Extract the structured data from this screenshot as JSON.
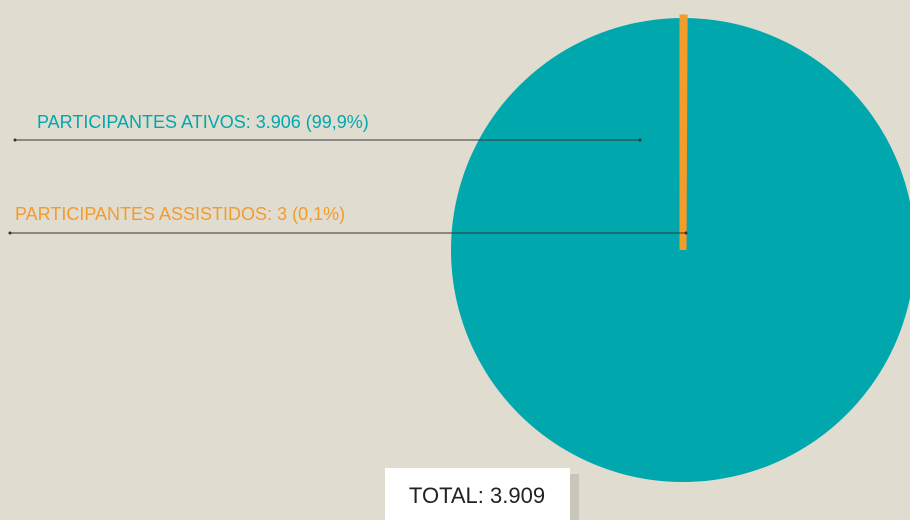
{
  "chart_data": {
    "type": "pie",
    "values": [
      3906,
      3
    ],
    "value_labels": [
      "PARTICIPANTES ATIVOS: 3.906 (99,9%)",
      "PARTICIPANTES ASSISTIDOS: 3 (0,1%)"
    ],
    "colors": [
      "#00a8ad",
      "#f49c2a"
    ],
    "annotation": "TOTAL: 3.909"
  }
}
